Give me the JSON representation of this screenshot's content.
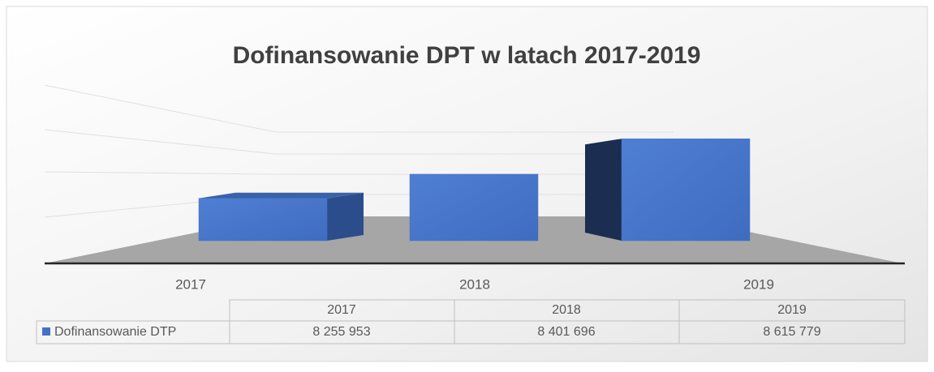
{
  "chart_data": {
    "type": "bar3d",
    "title": "Dofinansowanie DPT w latach  2017-2019",
    "categories": [
      "2017",
      "2018",
      "2019"
    ],
    "series": [
      {
        "name": "Dofinansowanie DTP",
        "color": "#4472c4",
        "values": [
          8255953,
          8401696,
          8615779
        ],
        "value_labels": [
          "8 255 953",
          "8 401 696",
          "8 615 779"
        ]
      }
    ],
    "ylim": [
      8000000,
      8700000
    ]
  }
}
